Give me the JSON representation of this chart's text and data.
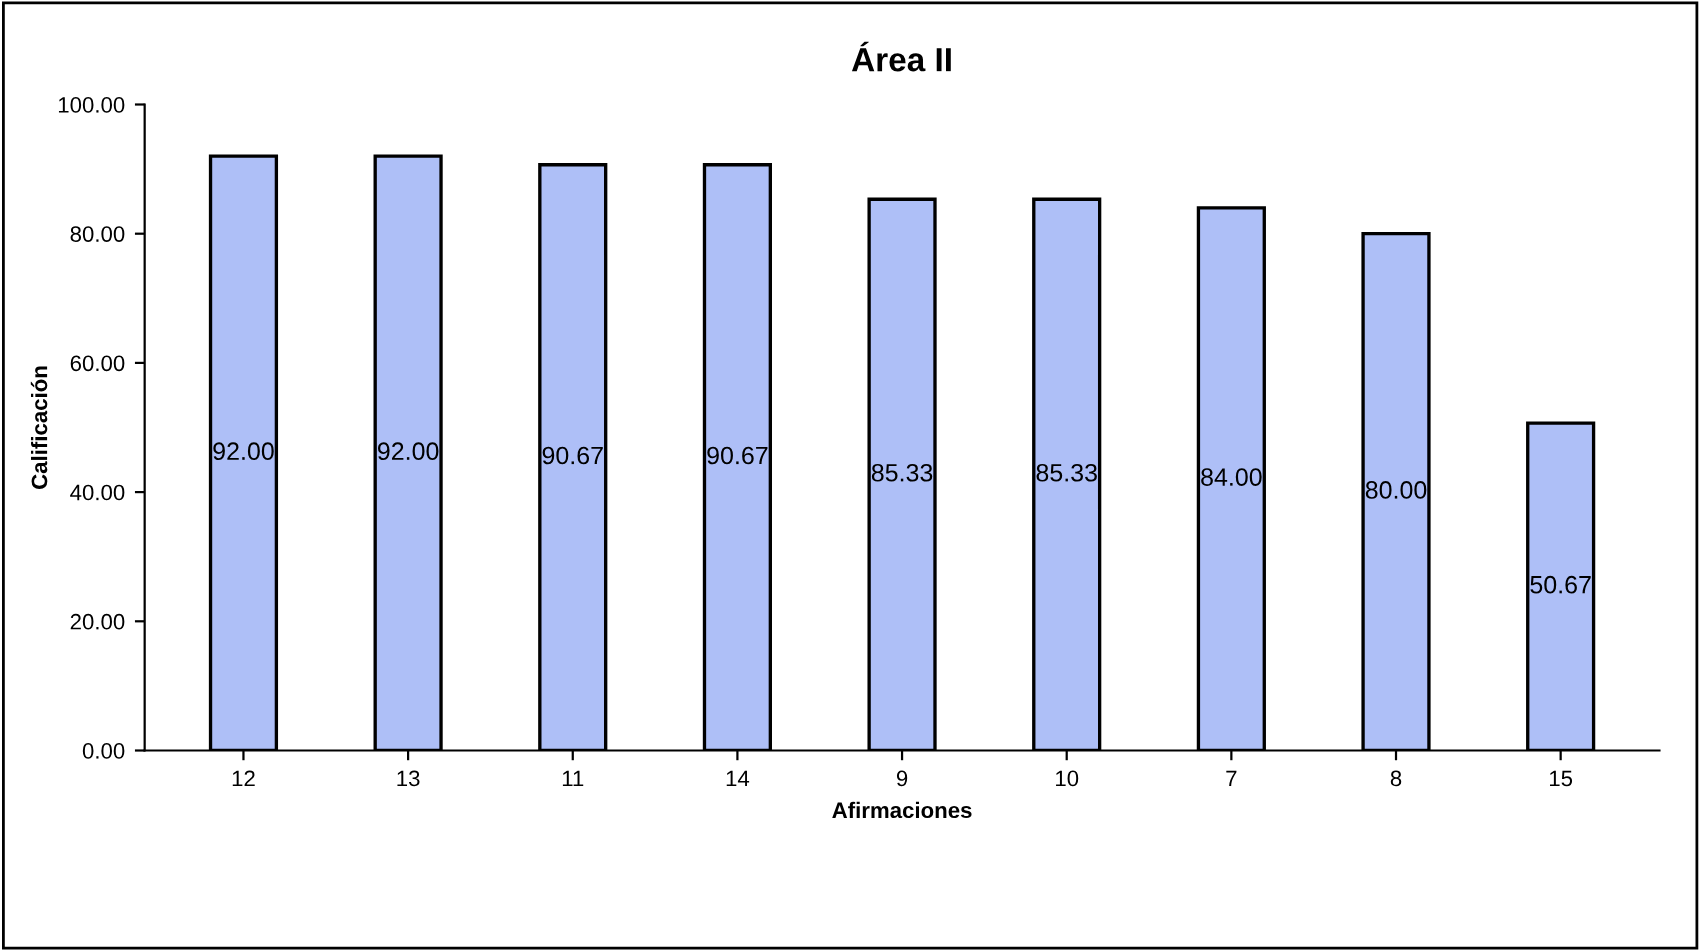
{
  "chart_data": {
    "type": "bar",
    "title": "Área II",
    "xlabel": "Afirmaciones",
    "ylabel": "Calificación",
    "categories": [
      "12",
      "13",
      "11",
      "14",
      "9",
      "10",
      "7",
      "8",
      "15"
    ],
    "values": [
      92.0,
      92.0,
      90.67,
      90.67,
      85.33,
      85.33,
      84.0,
      80.0,
      50.67
    ],
    "value_labels": [
      "92.00",
      "92.00",
      "90.67",
      "90.67",
      "85.33",
      "85.33",
      "84.00",
      "80.00",
      "50.67"
    ],
    "color": "#aebff7",
    "ylim": [
      0,
      100
    ],
    "yticks": [
      {
        "value": 0,
        "label": "0.00"
      },
      {
        "value": 20,
        "label": "20.00"
      },
      {
        "value": 40,
        "label": "40.00"
      },
      {
        "value": 60,
        "label": "60.00"
      },
      {
        "value": 80,
        "label": "80.00"
      },
      {
        "value": 100,
        "label": "100.00"
      }
    ],
    "grid": false,
    "legend": false
  }
}
